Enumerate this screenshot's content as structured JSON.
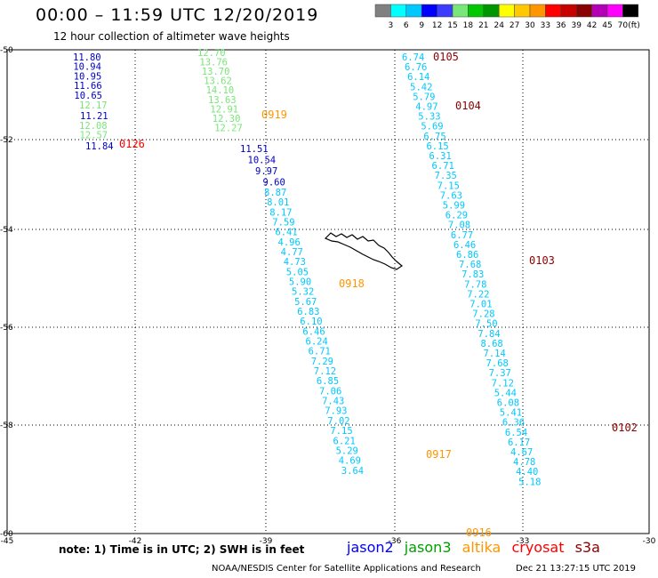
{
  "header": {
    "title": "00:00 – 11:59 UTC 12/20/2019",
    "subtitle": "12 hour collection of altimeter wave heights"
  },
  "color_scale": {
    "ticks": [
      "3",
      "6",
      "9",
      "12",
      "15",
      "18",
      "21",
      "24",
      "27",
      "30",
      "33",
      "36",
      "39",
      "42",
      "45",
      "70"
    ],
    "unit": "(ft)",
    "colors": [
      "#808080",
      "#00ffff",
      "#00c8ff",
      "#0000ff",
      "#3c3cff",
      "#78e678",
      "#00c800",
      "#009600",
      "#ffff00",
      "#ffc800",
      "#ff9600",
      "#ff0000",
      "#c80000",
      "#8b0000",
      "#b400b4",
      "#ff00ff",
      "#000000"
    ]
  },
  "map": {
    "lon_labels": [
      "-45",
      "-42",
      "-39",
      "-36",
      "-33",
      "-30"
    ],
    "lat_labels": [
      "-50",
      "-52",
      "-54",
      "-56",
      "-58",
      "-60"
    ],
    "coastline": "island-outline"
  },
  "pass_labels": [
    {
      "text": "0126",
      "color": "#ff0000"
    },
    {
      "text": "0919",
      "color": "#ff9600"
    },
    {
      "text": "0105",
      "color": "#8b0000"
    },
    {
      "text": "0104",
      "color": "#8b0000"
    },
    {
      "text": "0103",
      "color": "#8b0000"
    },
    {
      "text": "0918",
      "color": "#ff9600"
    },
    {
      "text": "0917",
      "color": "#ff9600"
    },
    {
      "text": "0916",
      "color": "#ff9600"
    },
    {
      "text": "0102",
      "color": "#8b0000"
    }
  ],
  "tracks": [
    {
      "color": "#0000c8",
      "values": [
        "11.80",
        "10.94",
        "10.95",
        "11.66",
        "10.65"
      ]
    },
    {
      "color": "#78e678",
      "values": [
        "12.17"
      ]
    },
    {
      "color": "#0000c8",
      "values": [
        "11.21"
      ]
    },
    {
      "color": "#78e678",
      "values": [
        "12.08",
        "12.57"
      ]
    },
    {
      "color": "#0000c8",
      "values": [
        "11.84"
      ]
    },
    {
      "color": "#78e678",
      "values": [
        "12.70",
        "13.76",
        "13.70",
        "13.62",
        "14.10",
        "13.63",
        "12.91",
        "12.30",
        "12.27"
      ]
    },
    {
      "color": "#0000c8",
      "values": [
        "11.51",
        "10.54",
        "9.97",
        "9.60"
      ]
    },
    {
      "color": "#00c8ff",
      "values": [
        "8.87",
        "8.01",
        "8.17",
        "7.59",
        "6.41",
        "4.96",
        "4.77",
        "4.73",
        "5.05",
        "5.90",
        "5.32",
        "5.67",
        "6.83",
        "6.10",
        "6.46",
        "6.24",
        "6.71",
        "7.29",
        "7.12",
        "6.85",
        "7.06",
        "7.43",
        "7.93",
        "7.02",
        "7.15",
        "6.21",
        "5.29",
        "4.69",
        "3.64"
      ]
    },
    {
      "color": "#00c8ff",
      "values": [
        "6.74",
        "6.76",
        "6.14",
        "5.42",
        "5.79",
        "4.97",
        "5.33",
        "5.69",
        "6.75",
        "6.15",
        "6.31",
        "6.71",
        "7.35",
        "7.15",
        "7.63",
        "5.99",
        "6.29",
        "7.08",
        "6.77",
        "6.46",
        "6.86",
        "7.68",
        "7.83",
        "7.78",
        "7.22",
        "7.01",
        "7.28",
        "7.50",
        "7.84",
        "8.68",
        "7.14",
        "7.68",
        "7.37",
        "7.12",
        "5.44",
        "6.08",
        "5.41",
        "6.36",
        "6.54",
        "6.17",
        "4.67",
        "4.78",
        "4.40",
        "5.18"
      ]
    }
  ],
  "note": "note: 1) Time is in UTC; 2) SWH is in feet",
  "legend": [
    {
      "text": "jason2",
      "color": "#0000ff"
    },
    {
      "text": "jason3",
      "color": "#00a000"
    },
    {
      "text": "altika",
      "color": "#ff9600"
    },
    {
      "text": "cryosat",
      "color": "#ff0000"
    },
    {
      "text": "s3a",
      "color": "#8b0000"
    }
  ],
  "footer": {
    "left": "NOAA/NESDIS Center for Satellite Applications and Research",
    "right": "Dec 21 13:27:15 UTC 2019"
  }
}
